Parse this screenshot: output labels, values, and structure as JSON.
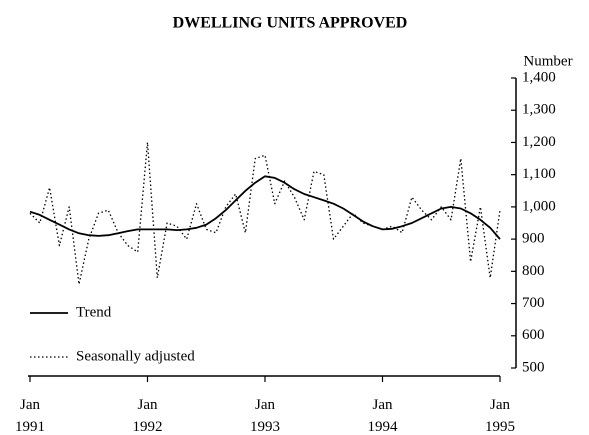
{
  "chart_data": {
    "type": "line",
    "title": "DWELLING UNITS APPROVED",
    "y_label": "Number",
    "x": [
      "1991-01",
      "1991-02",
      "1991-03",
      "1991-04",
      "1991-05",
      "1991-06",
      "1991-07",
      "1991-08",
      "1991-09",
      "1991-10",
      "1991-11",
      "1991-12",
      "1992-01",
      "1992-02",
      "1992-03",
      "1992-04",
      "1992-05",
      "1992-06",
      "1992-07",
      "1992-08",
      "1992-09",
      "1992-10",
      "1992-11",
      "1992-12",
      "1993-01",
      "1993-02",
      "1993-03",
      "1993-04",
      "1993-05",
      "1993-06",
      "1993-07",
      "1993-08",
      "1993-09",
      "1993-10",
      "1993-11",
      "1993-12",
      "1994-01",
      "1994-02",
      "1994-03",
      "1994-04",
      "1994-05",
      "1994-06",
      "1994-07",
      "1994-08",
      "1994-09",
      "1994-10",
      "1994-11",
      "1994-12",
      "1995-01"
    ],
    "series": [
      {
        "name": "Trend",
        "color": "#000000",
        "style": "solid",
        "values": [
          985,
          975,
          960,
          945,
          930,
          918,
          912,
          910,
          912,
          918,
          925,
          930,
          930,
          930,
          930,
          928,
          930,
          935,
          945,
          965,
          990,
          1020,
          1050,
          1075,
          1095,
          1090,
          1075,
          1055,
          1040,
          1030,
          1020,
          1010,
          995,
          975,
          955,
          940,
          930,
          932,
          940,
          950,
          965,
          980,
          995,
          1000,
          995,
          980,
          960,
          935,
          900
        ]
      },
      {
        "name": "Seasonally adjusted",
        "color": "#000000",
        "style": "dotted",
        "values": [
          980,
          950,
          1060,
          880,
          1000,
          760,
          900,
          980,
          990,
          920,
          880,
          860,
          1200,
          780,
          950,
          940,
          900,
          1010,
          930,
          920,
          1000,
          1040,
          920,
          1150,
          1160,
          1010,
          1080,
          1030,
          960,
          1110,
          1100,
          900,
          940,
          980,
          950,
          940,
          930,
          940,
          920,
          1030,
          990,
          960,
          1000,
          960,
          1150,
          830,
          1000,
          780,
          990
        ]
      }
    ],
    "ylim": [
      500,
      1400
    ],
    "yticks": [
      500,
      600,
      700,
      800,
      900,
      {
        "value": 1000,
        "label": "1,000"
      },
      {
        "value": 1100,
        "label": "1,100"
      },
      {
        "value": 1200,
        "label": "1,200"
      },
      {
        "value": 1300,
        "label": "1,300"
      },
      {
        "value": 1400,
        "label": "1,400"
      }
    ],
    "xticks": [
      {
        "value": "1991-01",
        "label": "Jan\n1991"
      },
      {
        "value": "1992-01",
        "label": "Jan\n1992"
      },
      {
        "value": "1993-01",
        "label": "Jan\n1993"
      },
      {
        "value": "1994-01",
        "label": "Jan\n1994"
      },
      {
        "value": "1995-01",
        "label": "Jan\n1995"
      }
    ],
    "y_axis_side": "right",
    "legend": "lower left"
  }
}
